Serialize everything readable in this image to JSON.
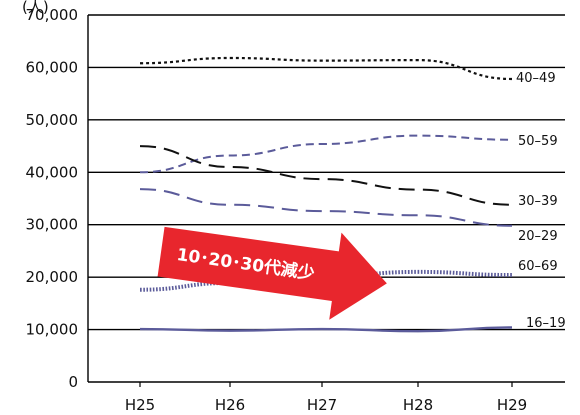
{
  "chart_data": {
    "type": "line",
    "title": "",
    "unit_label": "(人)",
    "xlabel": "",
    "ylabel": "",
    "categories": [
      "H25",
      "H26",
      "H27",
      "H28",
      "H29"
    ],
    "ylim": [
      0,
      70000
    ],
    "yticks": [
      0,
      10000,
      20000,
      30000,
      40000,
      50000,
      60000,
      70000
    ],
    "ytick_labels": [
      "0",
      "10,000",
      "20,000",
      "30,000",
      "40,000",
      "50,000",
      "60,000",
      "70,000"
    ],
    "grid": true,
    "series": [
      {
        "name": "40–49",
        "values": [
          60800,
          61800,
          61300,
          61400,
          57800
        ],
        "color": "#111111",
        "dash": "short-dot"
      },
      {
        "name": "50–59",
        "values": [
          40000,
          43200,
          45400,
          47000,
          46200
        ],
        "color": "#5b5b9a",
        "dash": "dash"
      },
      {
        "name": "30–39",
        "values": [
          45000,
          41000,
          38700,
          36700,
          33800
        ],
        "color": "#111111",
        "dash": "long-dash"
      },
      {
        "name": "20–29",
        "values": [
          36800,
          33800,
          32600,
          31800,
          29800
        ],
        "color": "#5b5b9a",
        "dash": "long-dash"
      },
      {
        "name": "60–69",
        "values": [
          17600,
          18900,
          20100,
          21000,
          20400
        ],
        "color": "#5b5b9a",
        "dash": "dot"
      },
      {
        "name": "16–19",
        "values": [
          10100,
          9800,
          10100,
          9700,
          10400
        ],
        "color": "#5b5b9a",
        "dash": "solid"
      }
    ],
    "annotation": {
      "text": "10･20･30代減少",
      "color": "#e8262d"
    }
  }
}
